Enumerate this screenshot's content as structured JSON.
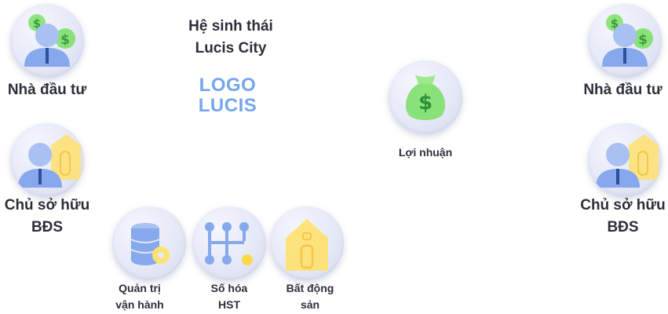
{
  "ecosystem": {
    "title_line1": "Hệ sinh thái",
    "title_line2": "Lucis City",
    "logo_line1": "LOGO",
    "logo_line2": "LUCIS"
  },
  "left_nodes": {
    "investor": {
      "label": "Nhà đầu tư",
      "icon": "investor-icon"
    },
    "owner": {
      "label_line1": "Chủ sở hữu",
      "label_line2": "BĐS",
      "icon": "property-owner-icon"
    }
  },
  "right_nodes": {
    "investor": {
      "label": "Nhà đầu tư",
      "icon": "investor-icon"
    },
    "owner": {
      "label_line1": "Chủ sở hữu",
      "label_line2": "BĐS",
      "icon": "property-owner-icon"
    }
  },
  "profit": {
    "label": "Lợi nhuận",
    "icon": "money-bag-icon"
  },
  "services": [
    {
      "label_line1": "Quản trị",
      "label_line2": "vận hành",
      "icon": "database-gear-icon"
    },
    {
      "label_line1": "Số hóa",
      "label_line2": "HST",
      "icon": "network-nodes-icon"
    },
    {
      "label_line1": "Bất động",
      "label_line2": "sản",
      "icon": "house-icon"
    }
  ],
  "colors": {
    "logo": "#74a6ee",
    "text": "#2b2f3a",
    "green": "#7ee06a",
    "blue": "#86a8ec",
    "yellow": "#ffe16e"
  }
}
